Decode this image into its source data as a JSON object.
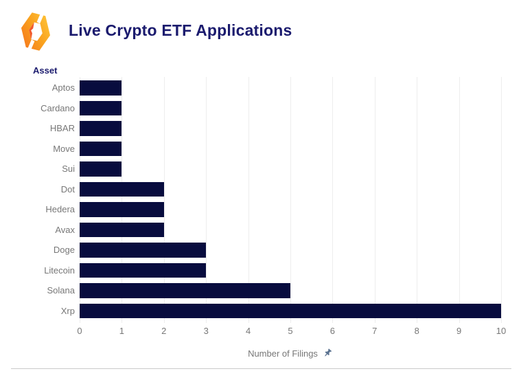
{
  "header": {
    "title": "Live Crypto ETF Applications"
  },
  "chart_data": {
    "type": "bar",
    "orientation": "horizontal",
    "title": "Live Crypto ETF Applications",
    "y_axis_title": "Asset",
    "x_axis_title": "Number of Filings",
    "categories": [
      "Aptos",
      "Cardano",
      "HBAR",
      "Move",
      "Sui",
      "Dot",
      "Hedera",
      "Avax",
      "Doge",
      "Litecoin",
      "Solana",
      "Xrp"
    ],
    "values": [
      1,
      1,
      1,
      1,
      1,
      2,
      2,
      2,
      3,
      3,
      5,
      10
    ],
    "xticks": [
      0,
      1,
      2,
      3,
      4,
      5,
      6,
      7,
      8,
      9,
      10
    ],
    "xlim": [
      0,
      10
    ],
    "grid": true,
    "legend": false
  },
  "colors": {
    "bar_navy": "#080c3e",
    "title_navy": "#1b1b6e",
    "label_gray": "#777777",
    "gridline": "#ededed",
    "divider": "#c9c9c9",
    "pin_slate": "#5b7391",
    "logo_orange_deep": "#f5711c",
    "logo_orange": "#f9a01e",
    "logo_yellow": "#ffcb3d",
    "logo_red_orange": "#f1592b"
  }
}
